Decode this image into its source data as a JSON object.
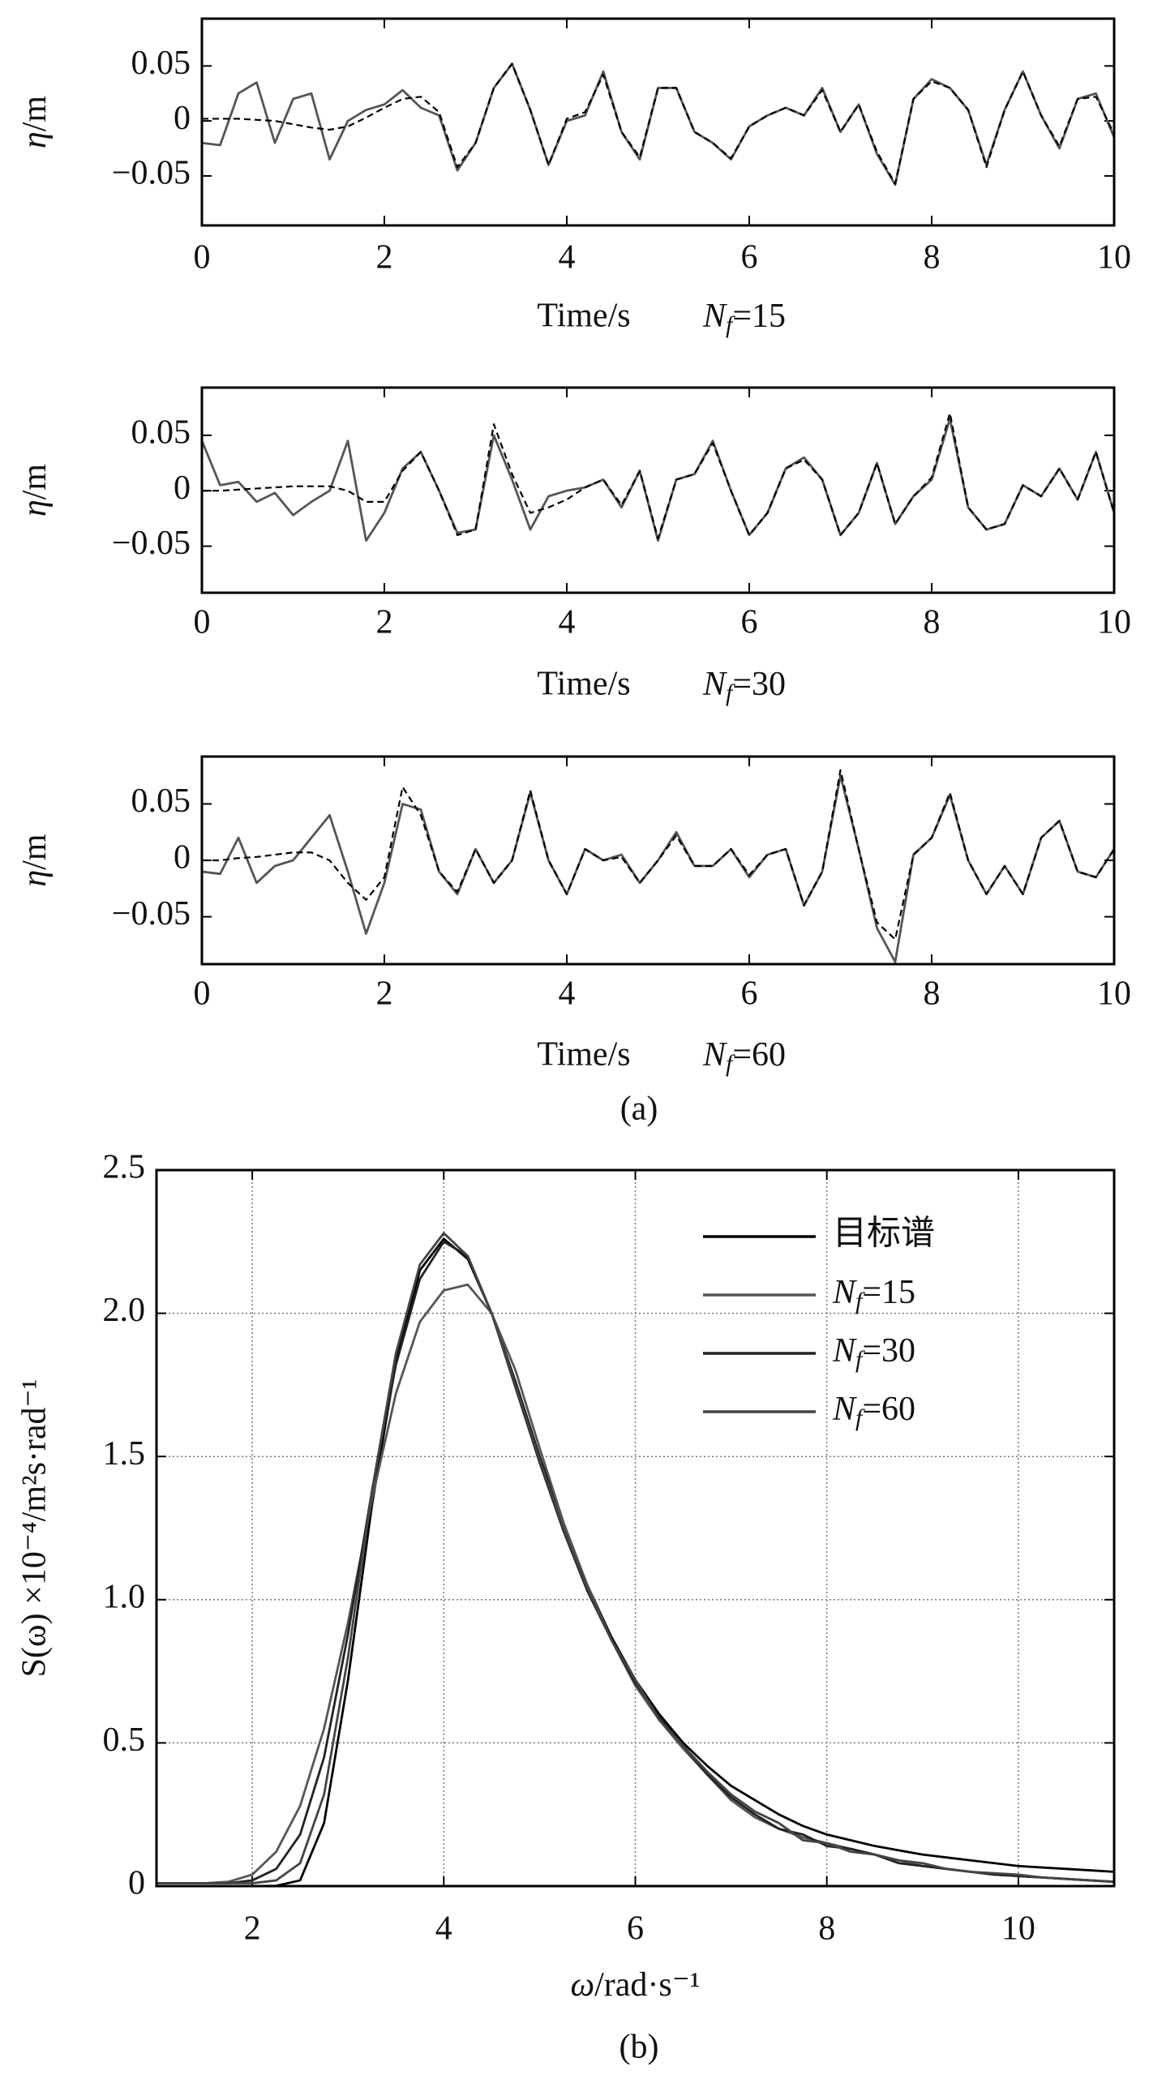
{
  "chart_data": [
    {
      "type": "line",
      "xlabel": "Time/s",
      "note": "Nf=15",
      "note_format": "sub",
      "ylabel": "η/m",
      "ylabel_format": "italic1",
      "xlim": [
        0,
        10
      ],
      "xticks": [
        0,
        2,
        4,
        6,
        8,
        10
      ],
      "ylim": [
        -0.095,
        0.093
      ],
      "yticks": [
        {
          "value": -0.05,
          "label": "−0.05"
        },
        0,
        0.05
      ],
      "grid": false,
      "x": [
        0,
        0.2,
        0.4,
        0.6,
        0.8,
        1,
        1.2,
        1.4,
        1.6,
        1.8,
        2,
        2.2,
        2.4,
        2.6,
        2.8,
        3,
        3.2,
        3.4,
        3.6,
        3.8,
        4,
        4.2,
        4.4,
        4.6,
        4.8,
        5,
        5.2,
        5.4,
        5.6,
        5.8,
        6,
        6.2,
        6.4,
        6.6,
        6.8,
        7,
        7.2,
        7.4,
        7.6,
        7.8,
        8,
        8.2,
        8.4,
        8.6,
        8.8,
        9,
        9.2,
        9.4,
        9.6,
        9.8,
        10
      ],
      "series": [
        {
          "color": "#555555",
          "dash": false,
          "values": [
            -0.02,
            -0.022,
            0.025,
            0.035,
            -0.02,
            0.02,
            0.025,
            -0.035,
            0.0,
            0.01,
            0.015,
            0.028,
            0.012,
            0.005,
            -0.045,
            -0.02,
            0.03,
            0.052,
            0.01,
            -0.04,
            0.0,
            0.005,
            0.045,
            -0.01,
            -0.035,
            0.03,
            0.03,
            -0.01,
            -0.02,
            -0.035,
            -0.005,
            0.005,
            0.012,
            0.005,
            0.03,
            -0.01,
            0.015,
            -0.03,
            -0.058,
            0.02,
            0.038,
            0.03,
            0.01,
            -0.04,
            0.01,
            0.045,
            0.005,
            -0.025,
            0.02,
            0.025,
            -0.015
          ]
        },
        {
          "color": "#000000",
          "dash": true,
          "values": [
            0.002,
            0.002,
            0.002,
            0.001,
            0.0,
            -0.003,
            -0.006,
            -0.008,
            -0.005,
            0.003,
            0.012,
            0.02,
            0.022,
            0.008,
            -0.042,
            -0.02,
            0.03,
            0.052,
            0.01,
            -0.04,
            0.002,
            0.008,
            0.042,
            -0.01,
            -0.033,
            0.03,
            0.03,
            -0.01,
            -0.02,
            -0.034,
            -0.005,
            0.005,
            0.012,
            0.005,
            0.028,
            -0.01,
            0.015,
            -0.028,
            -0.057,
            0.02,
            0.036,
            0.03,
            0.01,
            -0.042,
            0.01,
            0.045,
            0.005,
            -0.023,
            0.02,
            0.022,
            -0.012
          ]
        }
      ]
    },
    {
      "type": "line",
      "xlabel": "Time/s",
      "note": "Nf=30",
      "note_format": "sub",
      "ylabel": "η/m",
      "ylabel_format": "italic1",
      "xlim": [
        0,
        10
      ],
      "xticks": [
        0,
        2,
        4,
        6,
        8,
        10
      ],
      "ylim": [
        -0.092,
        0.093
      ],
      "yticks": [
        {
          "value": -0.05,
          "label": "−0.05"
        },
        0,
        0.05
      ],
      "grid": false,
      "x": [
        0,
        0.2,
        0.4,
        0.6,
        0.8,
        1,
        1.2,
        1.4,
        1.6,
        1.8,
        2,
        2.2,
        2.4,
        2.6,
        2.8,
        3,
        3.2,
        3.4,
        3.6,
        3.8,
        4,
        4.2,
        4.4,
        4.6,
        4.8,
        5,
        5.2,
        5.4,
        5.6,
        5.8,
        6,
        6.2,
        6.4,
        6.6,
        6.8,
        7,
        7.2,
        7.4,
        7.6,
        7.8,
        8,
        8.2,
        8.4,
        8.6,
        8.8,
        9,
        9.2,
        9.4,
        9.6,
        9.8,
        10
      ],
      "series": [
        {
          "color": "#555555",
          "dash": false,
          "values": [
            0.045,
            0.005,
            0.008,
            -0.01,
            -0.002,
            -0.022,
            -0.01,
            0.0,
            0.045,
            -0.045,
            -0.02,
            0.02,
            0.035,
            0.0,
            -0.038,
            -0.035,
            0.05,
            0.01,
            -0.035,
            -0.005,
            0.0,
            0.003,
            0.01,
            -0.015,
            0.018,
            -0.045,
            0.01,
            0.015,
            0.045,
            0.0,
            -0.04,
            -0.02,
            0.02,
            0.03,
            0.01,
            -0.04,
            -0.02,
            0.025,
            -0.03,
            -0.005,
            0.01,
            0.065,
            -0.015,
            -0.035,
            -0.03,
            0.005,
            -0.005,
            0.02,
            -0.008,
            0.035,
            -0.02
          ]
        },
        {
          "color": "#000000",
          "dash": true,
          "values": [
            0.0,
            0.0,
            0.001,
            0.002,
            0.003,
            0.004,
            0.004,
            0.004,
            0.0,
            -0.01,
            -0.01,
            0.018,
            0.035,
            0.0,
            -0.04,
            -0.035,
            0.06,
            0.015,
            -0.02,
            -0.015,
            -0.008,
            0.003,
            0.01,
            -0.013,
            0.018,
            -0.043,
            0.01,
            0.015,
            0.043,
            0.0,
            -0.04,
            -0.02,
            0.02,
            0.028,
            0.01,
            -0.04,
            -0.02,
            0.025,
            -0.03,
            -0.005,
            0.012,
            0.07,
            -0.015,
            -0.035,
            -0.03,
            0.005,
            -0.005,
            0.02,
            -0.008,
            0.035,
            -0.02
          ]
        }
      ]
    },
    {
      "type": "line",
      "xlabel": "Time/s",
      "note": "Nf=60",
      "note_format": "sub",
      "ylabel": "η/m",
      "ylabel_format": "italic1",
      "caption": "(a)",
      "xlim": [
        0,
        10
      ],
      "xticks": [
        0,
        2,
        4,
        6,
        8,
        10
      ],
      "ylim": [
        -0.092,
        0.092
      ],
      "yticks": [
        {
          "value": -0.05,
          "label": "−0.05"
        },
        0,
        0.05
      ],
      "grid": false,
      "x": [
        0,
        0.2,
        0.4,
        0.6,
        0.8,
        1,
        1.2,
        1.4,
        1.6,
        1.8,
        2,
        2.2,
        2.4,
        2.6,
        2.8,
        3,
        3.2,
        3.4,
        3.6,
        3.8,
        4,
        4.2,
        4.4,
        4.6,
        4.8,
        5,
        5.2,
        5.4,
        5.6,
        5.8,
        6,
        6.2,
        6.4,
        6.6,
        6.8,
        7,
        7.2,
        7.4,
        7.6,
        7.8,
        8,
        8.2,
        8.4,
        8.6,
        8.8,
        9,
        9.2,
        9.4,
        9.6,
        9.8,
        10
      ],
      "series": [
        {
          "color": "#555555",
          "dash": false,
          "values": [
            -0.01,
            -0.012,
            0.02,
            -0.02,
            -0.005,
            0.0,
            0.02,
            0.04,
            -0.01,
            -0.065,
            -0.02,
            0.05,
            0.045,
            -0.01,
            -0.03,
            0.01,
            -0.02,
            0.0,
            0.06,
            0.0,
            -0.03,
            0.01,
            0.0,
            0.005,
            -0.02,
            0.0,
            0.025,
            -0.005,
            -0.005,
            0.01,
            -0.015,
            0.005,
            0.01,
            -0.04,
            -0.01,
            0.075,
            0.01,
            -0.06,
            -0.09,
            0.005,
            0.02,
            0.058,
            0.0,
            -0.03,
            -0.005,
            -0.03,
            0.02,
            0.035,
            -0.01,
            -0.015,
            0.01
          ]
        },
        {
          "color": "#000000",
          "dash": true,
          "values": [
            0.0,
            0.0,
            0.002,
            0.003,
            0.005,
            0.007,
            0.007,
            0.0,
            -0.02,
            -0.035,
            -0.015,
            0.065,
            0.04,
            -0.01,
            -0.028,
            0.01,
            -0.02,
            0.0,
            0.062,
            0.0,
            -0.03,
            0.01,
            0.0,
            0.003,
            -0.02,
            0.0,
            0.022,
            -0.005,
            -0.005,
            0.01,
            -0.013,
            0.005,
            0.01,
            -0.04,
            -0.01,
            0.08,
            0.01,
            -0.055,
            -0.07,
            0.005,
            0.02,
            0.06,
            0.0,
            -0.03,
            -0.005,
            -0.03,
            0.02,
            0.035,
            -0.01,
            -0.015,
            0.01
          ]
        }
      ]
    },
    {
      "type": "line",
      "xlabel": "ω/rad·s⁻¹",
      "xlabel_format": "italic1",
      "ylabel": "S(ω) ×10⁻⁴/m²s·rad⁻¹",
      "caption": "(b)",
      "xlim": [
        1,
        11
      ],
      "xticks": [
        2,
        4,
        6,
        8,
        10
      ],
      "ylim": [
        0,
        2.5
      ],
      "yticks": [
        0,
        0.5,
        {
          "value": 1,
          "label": "1.0"
        },
        1.5,
        {
          "value": 2,
          "label": "2.0"
        },
        2.5
      ],
      "grid": true,
      "legend": "upper right",
      "x": [
        1,
        1.25,
        1.5,
        1.75,
        2,
        2.25,
        2.5,
        2.75,
        3,
        3.25,
        3.5,
        3.75,
        4,
        4.25,
        4.5,
        4.75,
        5,
        5.25,
        5.5,
        5.75,
        6,
        6.25,
        6.5,
        6.75,
        7,
        7.25,
        7.5,
        7.75,
        8,
        8.25,
        8.5,
        8.75,
        9,
        9.25,
        9.5,
        9.75,
        10,
        10.25,
        10.5,
        10.75,
        11
      ],
      "series": [
        {
          "name": "目标谱",
          "color": "#000000",
          "values": [
            0,
            0,
            0,
            0,
            0,
            0.001,
            0.02,
            0.22,
            0.72,
            1.33,
            1.83,
            2.15,
            2.26,
            2.19,
            2.0,
            1.76,
            1.5,
            1.26,
            1.05,
            0.87,
            0.72,
            0.6,
            0.5,
            0.42,
            0.35,
            0.3,
            0.25,
            0.21,
            0.18,
            0.16,
            0.14,
            0.125,
            0.11,
            0.1,
            0.09,
            0.08,
            0.07,
            0.065,
            0.06,
            0.055,
            0.05
          ]
        },
        {
          "name": "Nf=15",
          "name_format": "sub",
          "color": "#555555",
          "values": [
            0.01,
            0.01,
            0.01,
            0.015,
            0.04,
            0.12,
            0.28,
            0.55,
            0.92,
            1.35,
            1.72,
            1.97,
            2.08,
            2.1,
            2.0,
            1.8,
            1.53,
            1.27,
            1.05,
            0.86,
            0.7,
            0.58,
            0.48,
            0.39,
            0.3,
            0.24,
            0.2,
            0.17,
            0.15,
            0.13,
            0.11,
            0.09,
            0.07,
            0.06,
            0.05,
            0.04,
            0.035,
            0.03,
            0.025,
            0.02,
            0.015
          ]
        },
        {
          "name": "Nf=30",
          "name_format": "sub",
          "color": "#222222",
          "values": [
            0.01,
            0.01,
            0.01,
            0.01,
            0.02,
            0.06,
            0.18,
            0.45,
            0.88,
            1.38,
            1.82,
            2.12,
            2.25,
            2.2,
            2.0,
            1.74,
            1.48,
            1.24,
            1.03,
            0.86,
            0.71,
            0.59,
            0.49,
            0.39,
            0.31,
            0.25,
            0.2,
            0.18,
            0.14,
            0.13,
            0.11,
            0.08,
            0.07,
            0.06,
            0.05,
            0.04,
            0.035,
            0.03,
            0.025,
            0.02,
            0.015
          ]
        },
        {
          "name": "Nf=60",
          "name_format": "sub",
          "color": "#444444",
          "values": [
            0.01,
            0.01,
            0.01,
            0.01,
            0.01,
            0.02,
            0.08,
            0.32,
            0.8,
            1.38,
            1.86,
            2.17,
            2.28,
            2.2,
            2.0,
            1.75,
            1.49,
            1.25,
            1.04,
            0.86,
            0.72,
            0.58,
            0.49,
            0.4,
            0.32,
            0.26,
            0.22,
            0.16,
            0.15,
            0.12,
            0.11,
            0.09,
            0.08,
            0.06,
            0.05,
            0.045,
            0.04,
            0.03,
            0.025,
            0.02,
            0.015
          ]
        }
      ]
    }
  ]
}
